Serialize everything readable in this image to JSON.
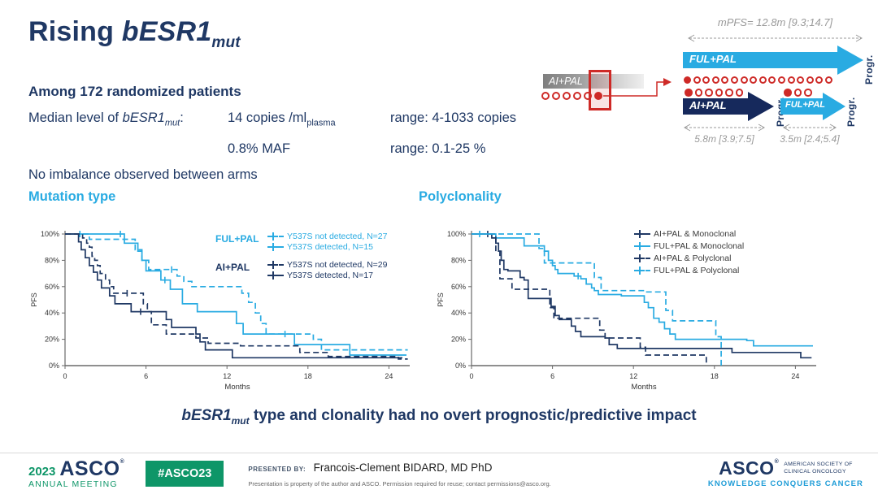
{
  "colors": {
    "navy": "#1F3864",
    "cyan": "#29ABE2",
    "red": "#CE2A27",
    "green": "#0E9668",
    "gray": "#9A9A9A",
    "teal": "#1E9CD7",
    "axis": "#6a6a6a"
  },
  "title": {
    "pre": "Rising ",
    "gene": "bESR1",
    "sub": "mut"
  },
  "stats": {
    "line1": "Among 172 randomized patients",
    "median_pre": "Median level of ",
    "gene": "bESR1",
    "gene_sub": "mut",
    "median_post": ":",
    "row1_value_pre": "14 copies /ml",
    "row1_value_sub": "plasma",
    "row1_range": "range: 4-1033 copies",
    "row2_value": "0.8% MAF",
    "row2_range": "range: 0.1-25 %",
    "line3": "No imbalance observed between arms"
  },
  "diagram": {
    "mpfs_top": "mPFS= 12.8m [9.3;14.7]",
    "source": {
      "bar_label": "AI+PAL",
      "circles": {
        "open": 5,
        "filled": 1,
        "filled_first": false,
        "size": 10
      }
    },
    "ful_pal_top": {
      "label": "FUL+PAL",
      "progr": "Progr.",
      "circles": {
        "filled": 1,
        "open": 15,
        "filled_first": true,
        "size": 9
      }
    },
    "ai_pal": {
      "label": "AI+PAL",
      "progr": "Progr.",
      "mpfs": "5.8m [3.9;7.5]",
      "circles": {
        "filled": 1,
        "open": 5,
        "filled_first": true,
        "size": 9.5
      }
    },
    "ful_pal_2nd": {
      "label": "FUL+PAL",
      "progr": "Progr.",
      "mpfs": "3.5m [2.4;5.4]",
      "circles": {
        "filled": 1,
        "open": 2,
        "filled_first": true,
        "size": 9.5
      }
    }
  },
  "chart_data": [
    {
      "type": "line",
      "kind": "kaplan-meier-step",
      "title": "Mutation type",
      "xlabel": "Months",
      "ylabel": "PFS",
      "xticks": [
        0,
        6,
        12,
        18,
        24
      ],
      "yticks": [
        0,
        20,
        40,
        60,
        80,
        100
      ],
      "xlim": [
        0,
        25.5
      ],
      "ylim": [
        0,
        100
      ],
      "legend_groups": [
        "FUL+PAL",
        "AI+PAL"
      ],
      "series": [
        {
          "name": "Y537S not detected, N=27",
          "group": "FUL+PAL",
          "color": "cyan",
          "dash": true,
          "end": 25.4,
          "steps": [
            [
              0,
              100
            ],
            [
              1.8,
              96
            ],
            [
              5.2,
              88
            ],
            [
              5.7,
              80
            ],
            [
              6.2,
              73
            ],
            [
              8.3,
              68
            ],
            [
              8.8,
              64
            ],
            [
              9.4,
              60
            ],
            [
              13.1,
              55
            ],
            [
              13.6,
              48
            ],
            [
              14.1,
              40
            ],
            [
              14.5,
              32
            ],
            [
              14.9,
              24
            ],
            [
              18.4,
              20
            ],
            [
              19.0,
              12
            ]
          ],
          "censors": [
            [
              1.1,
              100
            ],
            [
              7.9,
              73
            ],
            [
              16.3,
              24
            ]
          ]
        },
        {
          "name": "Y537S detected, N=15",
          "group": "FUL+PAL",
          "color": "cyan",
          "dash": false,
          "end": 25.3,
          "steps": [
            [
              0,
              100
            ],
            [
              4.4,
              93
            ],
            [
              5.4,
              87
            ],
            [
              5.7,
              80
            ],
            [
              6.0,
              72
            ],
            [
              7.1,
              65
            ],
            [
              7.8,
              58
            ],
            [
              8.7,
              47
            ],
            [
              9.8,
              41
            ],
            [
              12.7,
              32
            ],
            [
              13.2,
              24
            ],
            [
              17.0,
              16
            ],
            [
              21.1,
              8
            ]
          ],
          "censors": [
            [
              4.1,
              100
            ],
            [
              7.4,
              65
            ]
          ]
        },
        {
          "name": "Y537S not detected, N=29",
          "group": "AI+PAL",
          "color": "navy",
          "dash": true,
          "end": 25.4,
          "steps": [
            [
              0,
              100
            ],
            [
              1.3,
              97
            ],
            [
              1.6,
              93
            ],
            [
              1.8,
              90
            ],
            [
              2.0,
              83
            ],
            [
              2.2,
              80
            ],
            [
              2.4,
              76
            ],
            [
              2.6,
              70
            ],
            [
              3.0,
              65
            ],
            [
              3.3,
              60
            ],
            [
              3.6,
              55
            ],
            [
              5.8,
              47
            ],
            [
              6.1,
              41
            ],
            [
              6.4,
              31
            ],
            [
              7.5,
              24
            ],
            [
              9.7,
              21
            ],
            [
              10.6,
              17
            ],
            [
              13.0,
              15
            ],
            [
              17.4,
              10
            ],
            [
              19.5,
              7
            ],
            [
              24.7,
              5
            ]
          ],
          "censors": [
            [
              4.6,
              55
            ]
          ]
        },
        {
          "name": "Y537S detected, N=17",
          "group": "AI+PAL",
          "color": "navy",
          "dash": false,
          "end": 25.0,
          "steps": [
            [
              0,
              100
            ],
            [
              1.0,
              94
            ],
            [
              1.2,
              88
            ],
            [
              1.5,
              82
            ],
            [
              1.8,
              76
            ],
            [
              2.1,
              71
            ],
            [
              2.4,
              65
            ],
            [
              2.7,
              59
            ],
            [
              3.3,
              53
            ],
            [
              3.7,
              47
            ],
            [
              4.9,
              41
            ],
            [
              7.5,
              35
            ],
            [
              7.9,
              29
            ],
            [
              9.7,
              24
            ],
            [
              10.0,
              18
            ],
            [
              10.4,
              12
            ],
            [
              12.4,
              6
            ]
          ],
          "censors": [
            [
              5.6,
              41
            ]
          ]
        }
      ]
    },
    {
      "type": "line",
      "kind": "kaplan-meier-step",
      "title": "Polyclonality",
      "xlabel": "Months",
      "ylabel": "PFS",
      "xticks": [
        0,
        6,
        12,
        18,
        24
      ],
      "yticks": [
        0,
        20,
        40,
        60,
        80,
        100
      ],
      "xlim": [
        0,
        25.5
      ],
      "ylim": [
        0,
        100
      ],
      "series": [
        {
          "name": "AI+PAL & Monoclonal",
          "color": "navy",
          "dash": false,
          "end": 25.2,
          "steps": [
            [
              0,
              100
            ],
            [
              1.5,
              97
            ],
            [
              1.8,
              93
            ],
            [
              2.0,
              87
            ],
            [
              2.2,
              80
            ],
            [
              2.4,
              73
            ],
            [
              2.7,
              72
            ],
            [
              3.6,
              67
            ],
            [
              3.9,
              65
            ],
            [
              4.2,
              51
            ],
            [
              5.9,
              45
            ],
            [
              6.2,
              38
            ],
            [
              6.5,
              35
            ],
            [
              7.4,
              30
            ],
            [
              7.7,
              26
            ],
            [
              8.1,
              22
            ],
            [
              9.9,
              21
            ],
            [
              10.2,
              16
            ],
            [
              10.8,
              13
            ],
            [
              19.3,
              10
            ],
            [
              24.4,
              6
            ]
          ],
          "censors": [
            [
              1.2,
              100
            ]
          ]
        },
        {
          "name": "FUL+PAL & Monoclonal",
          "color": "cyan",
          "dash": false,
          "end": 25.3,
          "steps": [
            [
              0,
              100
            ],
            [
              1.8,
              97
            ],
            [
              3.9,
              91
            ],
            [
              5.4,
              87
            ],
            [
              5.7,
              80
            ],
            [
              6.0,
              76
            ],
            [
              6.2,
              73
            ],
            [
              6.4,
              70
            ],
            [
              7.6,
              68
            ],
            [
              8.1,
              66
            ],
            [
              8.5,
              62
            ],
            [
              8.9,
              59
            ],
            [
              9.1,
              57
            ],
            [
              9.4,
              54
            ],
            [
              11.1,
              53
            ],
            [
              12.8,
              48
            ],
            [
              13.1,
              44
            ],
            [
              13.5,
              36
            ],
            [
              13.9,
              33
            ],
            [
              14.3,
              28
            ],
            [
              14.7,
              24
            ],
            [
              15.1,
              20
            ],
            [
              20.4,
              19
            ],
            [
              20.9,
              15
            ]
          ],
          "censors": [
            [
              7.9,
              68
            ]
          ]
        },
        {
          "name": "AI+PAL & Polyclonal",
          "color": "navy",
          "dash": true,
          "end": 17.4,
          "steps": [
            [
              0,
              100
            ],
            [
              1.8,
              87
            ],
            [
              2.1,
              66
            ],
            [
              3.0,
              58
            ],
            [
              5.8,
              44
            ],
            [
              6.1,
              36
            ],
            [
              9.5,
              27
            ],
            [
              9.9,
              21
            ],
            [
              12.5,
              14
            ],
            [
              12.9,
              8
            ],
            [
              17.4,
              0
            ]
          ],
          "censors": []
        },
        {
          "name": "FUL+PAL & Polyclonal",
          "color": "cyan",
          "dash": true,
          "end": 18.5,
          "steps": [
            [
              0,
              100
            ],
            [
              5.0,
              89
            ],
            [
              5.4,
              78
            ],
            [
              9.1,
              67
            ],
            [
              9.6,
              57
            ],
            [
              12.9,
              56
            ],
            [
              14.4,
              42
            ],
            [
              14.9,
              34
            ],
            [
              18.1,
              22
            ],
            [
              18.5,
              0
            ]
          ],
          "censors": [
            [
              0.6,
              100
            ]
          ]
        }
      ]
    }
  ],
  "statement": {
    "gene": "bESR1",
    "sub": "mut",
    "text": " type and clonality had no overt prognostic/predictive impact"
  },
  "footer": {
    "year": "2023",
    "org": "ASCO",
    "reg": "®",
    "meeting": "ANNUAL MEETING",
    "hashtag": "#ASCO23",
    "presented_by_label": "PRESENTED BY:",
    "presenter": "Francois-Clement BIDARD, MD PhD",
    "disclaimer": "Presentation is property of the author and ASCO. Permission required for reuse; contact permissions@asco.org.",
    "logo_org": "ASCO",
    "society_line1": "AMERICAN SOCIETY OF",
    "society_line2": "CLINICAL ONCOLOGY",
    "tagline": "KNOWLEDGE CONQUERS CANCER"
  }
}
